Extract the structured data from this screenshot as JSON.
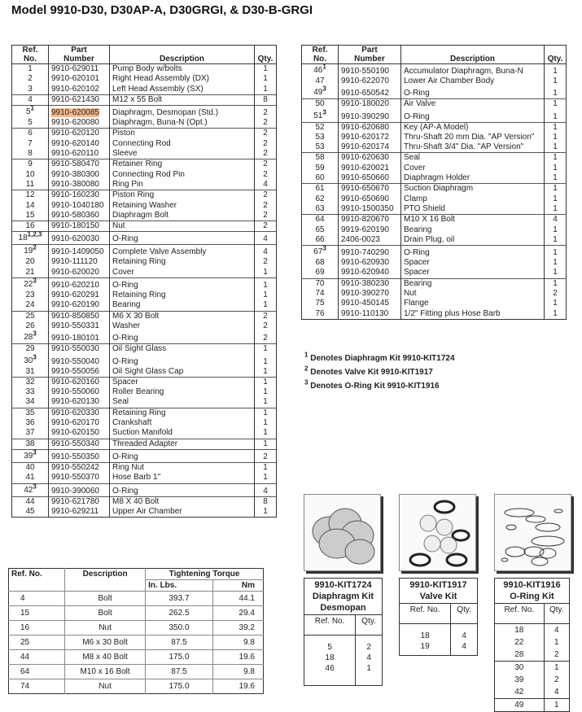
{
  "title": "Model 9910-D30, D30AP-A, D30GRGI, & D30-B-GRGI",
  "highlight_color": "#f6b98d",
  "headers": {
    "ref": "Ref.",
    "no": "No.",
    "part": "Part",
    "number": "Number",
    "description": "Description",
    "qty": "Qty."
  },
  "left_rows": [
    [
      "1",
      "",
      "9910-629011",
      "Pump Body w/bolts",
      "1"
    ],
    [
      "2",
      "",
      "9910-620101",
      "Right Head Assembly (DX)",
      "1"
    ],
    [
      "3",
      "",
      "9910-620102",
      "Left Head Assembly (SX)",
      "1"
    ],
    [
      "4",
      "",
      "9910-621430",
      "M12 x 55 Bolt",
      "8"
    ],
    [
      "5",
      "1",
      "9910-620085",
      "Diaphragm, Desmopan (Std.)",
      "2"
    ],
    [
      "5",
      "",
      "9910-620080",
      "Diaphragm, Buna-N (Opt.)",
      "2"
    ],
    [
      "6",
      "",
      "9910-620120",
      "Piston",
      "2"
    ],
    [
      "7",
      "",
      "9910-620140",
      "Connecting Rod",
      "2"
    ],
    [
      "8",
      "",
      "9910-620110",
      "Sleeve",
      "2"
    ],
    [
      "9",
      "",
      "9910-580470",
      "Retainer Ring",
      "2"
    ],
    [
      "10",
      "",
      "9910-380300",
      "Connecting Rod Pin",
      "2"
    ],
    [
      "11",
      "",
      "9910-380080",
      "Ring Pin",
      "4"
    ],
    [
      "12",
      "",
      "9910-160230",
      "Piston Ring",
      "2"
    ],
    [
      "14",
      "",
      "9910-1040180",
      "Retaining Washer",
      "2"
    ],
    [
      "15",
      "",
      "9910-580360",
      "Diaphragm Bolt",
      "2"
    ],
    [
      "16",
      "",
      "9910-180150",
      "Nut",
      "2"
    ],
    [
      "18",
      "1,2,3",
      "9910-620030",
      "O-Ring",
      "4"
    ],
    [
      "19",
      "2",
      "9910-1409050",
      "Complete Valve Assembly",
      "4"
    ],
    [
      "20",
      "",
      "9910-111120",
      "Retaining Ring",
      "2"
    ],
    [
      "21",
      "",
      "9910-620020",
      "Cover",
      "1"
    ],
    [
      "22",
      "3",
      "9910-620210",
      "O-Ring",
      "1"
    ],
    [
      "23",
      "",
      "9910-620291",
      "Retaining Ring",
      "1"
    ],
    [
      "24",
      "",
      "9910-620190",
      "Bearing",
      "1"
    ],
    [
      "25",
      "",
      "9910-850850",
      "M6 X 30 Bolt",
      "2"
    ],
    [
      "26",
      "",
      "9910-550331",
      "Washer",
      "2"
    ],
    [
      "28",
      "3",
      "9910-180101",
      "O-Ring",
      "2"
    ],
    [
      "29",
      "",
      "9910-550030",
      "Oil Sight Glass",
      "1"
    ],
    [
      "30",
      "3",
      "9910-550040",
      "O-Ring",
      "1"
    ],
    [
      "31",
      "",
      "9910-550056",
      "Oil Sight Glass Cap",
      "1"
    ],
    [
      "32",
      "",
      "9910-620160",
      "Spacer",
      "1"
    ],
    [
      "33",
      "",
      "9910-550060",
      "Roller Bearing",
      "1"
    ],
    [
      "34",
      "",
      "9910-620130",
      "Seal",
      "1"
    ],
    [
      "35",
      "",
      "9910-620330",
      "Retaining Ring",
      "1"
    ],
    [
      "36",
      "",
      "9910-620170",
      "Crankshaft",
      "1"
    ],
    [
      "37",
      "",
      "9910-620150",
      "Suction Manifold",
      "1"
    ],
    [
      "38",
      "",
      "9910-550340",
      "Threaded Adapter",
      "1"
    ],
    [
      "39",
      "3",
      "9910-550350",
      "O-Ring",
      "2"
    ],
    [
      "40",
      "",
      "9910-550242",
      "Ring Nut",
      "1"
    ],
    [
      "41",
      "",
      "9910-550370",
      "Hose Barb 1\"",
      "1"
    ],
    [
      "42",
      "3",
      "9910-390060",
      "O-Ring",
      "4"
    ],
    [
      "44",
      "",
      "9910-621780",
      "M8 X 40 Bolt",
      "8"
    ],
    [
      "45",
      "",
      "9910-629211",
      "Upper Air Chamber",
      "1"
    ]
  ],
  "right_rows": [
    [
      "46",
      "1",
      "9910-550190",
      "Accumulator Diaphragm, Buna-N",
      "1"
    ],
    [
      "47",
      "",
      "9910-622070",
      "Lower Air Chamber Body",
      "1"
    ],
    [
      "49",
      "3",
      "9910-650542",
      "O-Ring",
      "1"
    ],
    [
      "50",
      "",
      "9910-180020",
      "Air Valve",
      "1"
    ],
    [
      "51",
      "3",
      "9910-390290",
      "O-Ring",
      "1"
    ],
    [
      "52",
      "",
      "9910-620680",
      "Key (AP-A Model)",
      "1"
    ],
    [
      "53",
      "",
      "9910-620172",
      "Thru-Shaft 20 mm Dia. \"AP Version\"",
      "1"
    ],
    [
      "53",
      "",
      "9910-620174",
      "Thru-Shaft 3/4\" Dia. \"AP Version\"",
      "1"
    ],
    [
      "58",
      "",
      "9910-620630",
      "Seal",
      "1"
    ],
    [
      "59",
      "",
      "9910-620021",
      "Cover",
      "1"
    ],
    [
      "60",
      "",
      "9910-650660",
      "Diaphragm Holder",
      "1"
    ],
    [
      "61",
      "",
      "9910-650670",
      "Suction Diaphragm",
      "1"
    ],
    [
      "62",
      "",
      "9910-650690",
      "Clamp",
      "1"
    ],
    [
      "63",
      "",
      "9910-1500350",
      "PTO Shield",
      "1"
    ],
    [
      "64",
      "",
      "9910-820670",
      "M10 X 16 Bolt",
      "4"
    ],
    [
      "65",
      "",
      "9919-620190",
      "Bearing",
      "1"
    ],
    [
      "66",
      "",
      "2406-0023",
      "Drain Plug, oil",
      "1"
    ],
    [
      "67",
      "3",
      "9910-740290",
      "O-Ring",
      "1"
    ],
    [
      "68",
      "",
      "9910-620930",
      "Spacer",
      "1"
    ],
    [
      "69",
      "",
      "9910-620940",
      "Spacer",
      "1"
    ],
    [
      "70",
      "",
      "9910-380230",
      "Bearing",
      "1"
    ],
    [
      "74",
      "",
      "9910-390270",
      "Nut",
      "2"
    ],
    [
      "75",
      "",
      "9910-450145",
      "Flange",
      "1"
    ],
    [
      "76",
      "",
      "9910-110130",
      "1/2\" Fitting plus Hose Barb",
      "1"
    ]
  ],
  "notes": [
    {
      "sup": "1",
      "text": "Denotes Diaphragm Kit 9910-KIT1724"
    },
    {
      "sup": "2",
      "text": "Denotes Valve Kit 9910-KIT1917"
    },
    {
      "sup": "3",
      "text": "Denotes O-Ring Kit 9910-KIT1916"
    }
  ],
  "torque": {
    "headers": {
      "ref": "Ref. No.",
      "description": "Description",
      "torque": "Tightening Torque",
      "inlbs": "In. Lbs.",
      "nm": "Nm"
    },
    "rows": [
      [
        "4",
        "Bolt",
        "393.7",
        "44.1"
      ],
      [
        "15",
        "Bolt",
        "262.5",
        "29.4"
      ],
      [
        "16",
        "Nut",
        "350.0",
        "39.2"
      ],
      [
        "25",
        "M6 x 30 Bolt",
        "87.5",
        "9.8"
      ],
      [
        "44",
        "M8 x 40 Bolt",
        "175.0",
        "19.6"
      ],
      [
        "64",
        "M10 x 16 Bolt",
        "87.5",
        "9.8"
      ],
      [
        "74",
        "Nut",
        "175.0",
        "19.6"
      ]
    ]
  },
  "kits": [
    {
      "title": [
        "9910-KIT1724",
        "Diaphragm Kit",
        "Desmopan"
      ],
      "ref_label": "Ref. No.",
      "qty_label": "Qty.",
      "rows": [
        [
          "5",
          "2"
        ],
        [
          "18",
          "4"
        ],
        [
          "46",
          "1"
        ]
      ],
      "image": "diaphragm-kit-image"
    },
    {
      "title": [
        "9910-KIT1917",
        "Valve Kit"
      ],
      "ref_label": "Ref. No.",
      "qty_label": "Qty.",
      "rows": [
        [
          "18",
          "4"
        ],
        [
          "19",
          "4"
        ]
      ],
      "image": "valve-kit-image"
    },
    {
      "title": [
        "9910-KIT1916",
        "O-Ring Kit"
      ],
      "ref_label": "Ref. No.",
      "qty_label": "Qty.",
      "rows": [
        [
          "18",
          "4"
        ],
        [
          "22",
          "1"
        ],
        [
          "28",
          "2"
        ],
        [
          "30",
          "1"
        ],
        [
          "39",
          "2"
        ],
        [
          "42",
          "4"
        ],
        [
          "49",
          "1"
        ]
      ],
      "image": "o-ring-kit-image"
    }
  ]
}
